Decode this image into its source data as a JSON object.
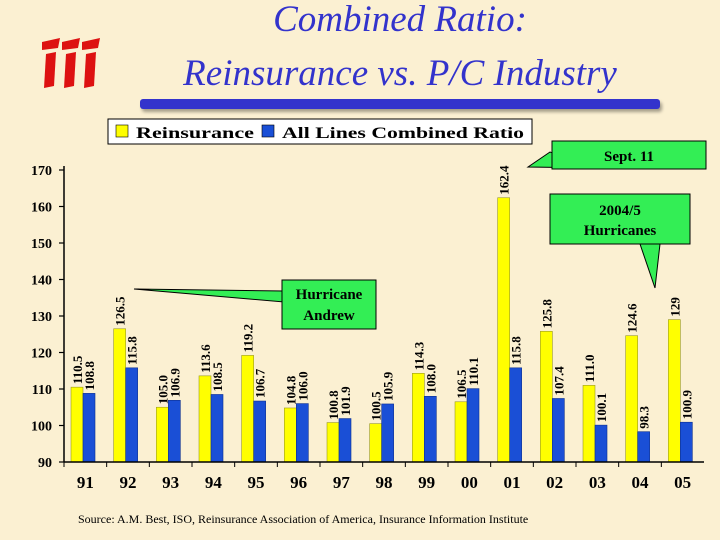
{
  "slide": {
    "title_line1": "Combined Ratio:",
    "title_line2": "Reinsurance vs. P/C Industry",
    "source": "Source: A.M. Best, ISO, Reinsurance Association of America, Insurance Information Institute"
  },
  "logo": {
    "icon": "iii-logo"
  },
  "colors": {
    "background": "#fbf0d2",
    "title": "#3333cc",
    "reinsurance_bar": "#ffff00",
    "industry_bar": "#1a4fd6",
    "callout": "#33ee55",
    "logo": "#dd1111"
  },
  "chart_data": {
    "type": "bar",
    "categories": [
      "91",
      "92",
      "93",
      "94",
      "95",
      "96",
      "97",
      "98",
      "99",
      "00",
      "01",
      "02",
      "03",
      "04",
      "05"
    ],
    "series": [
      {
        "name": "Reinsurance",
        "values": [
          110.5,
          126.5,
          105.0,
          113.6,
          119.2,
          104.8,
          100.8,
          100.5,
          114.3,
          106.5,
          162.4,
          125.8,
          111.0,
          124.6,
          129
        ]
      },
      {
        "name": "All Lines Combined Ratio",
        "values": [
          108.8,
          115.8,
          106.9,
          108.5,
          106.7,
          106.0,
          101.9,
          105.9,
          108.0,
          110.1,
          115.8,
          107.4,
          100.1,
          98.3,
          100.9
        ]
      }
    ],
    "value_labels": [
      [
        "110.5",
        "126.5",
        "105.0",
        "113.6",
        "119.2",
        "104.8",
        "100.8",
        "100.5",
        "114.3",
        "106.5",
        "162.4",
        "125.8",
        "111.0",
        "124.6",
        "129"
      ],
      [
        "108.8",
        "115.8",
        "106.9",
        "108.5",
        "106.7",
        "106.0",
        "101.9",
        "105.9",
        "108.0",
        "110.1",
        "115.8",
        "107.4",
        "100.1",
        "98.3",
        "100.9"
      ]
    ],
    "y_ticks": [
      "90",
      "100",
      "110",
      "120",
      "130",
      "140",
      "150",
      "160",
      "170"
    ],
    "ylim": [
      90,
      170
    ],
    "grid": false,
    "legend_position": "top-center",
    "annotations": [
      {
        "text": "Sept. 11",
        "category": "01",
        "series": 0
      },
      {
        "text_lines": [
          "2004/5",
          "Hurricanes"
        ],
        "category": "04",
        "series": 0
      },
      {
        "text_lines": [
          "Hurricane",
          "Andrew"
        ],
        "category": "92",
        "series": 0
      }
    ]
  }
}
